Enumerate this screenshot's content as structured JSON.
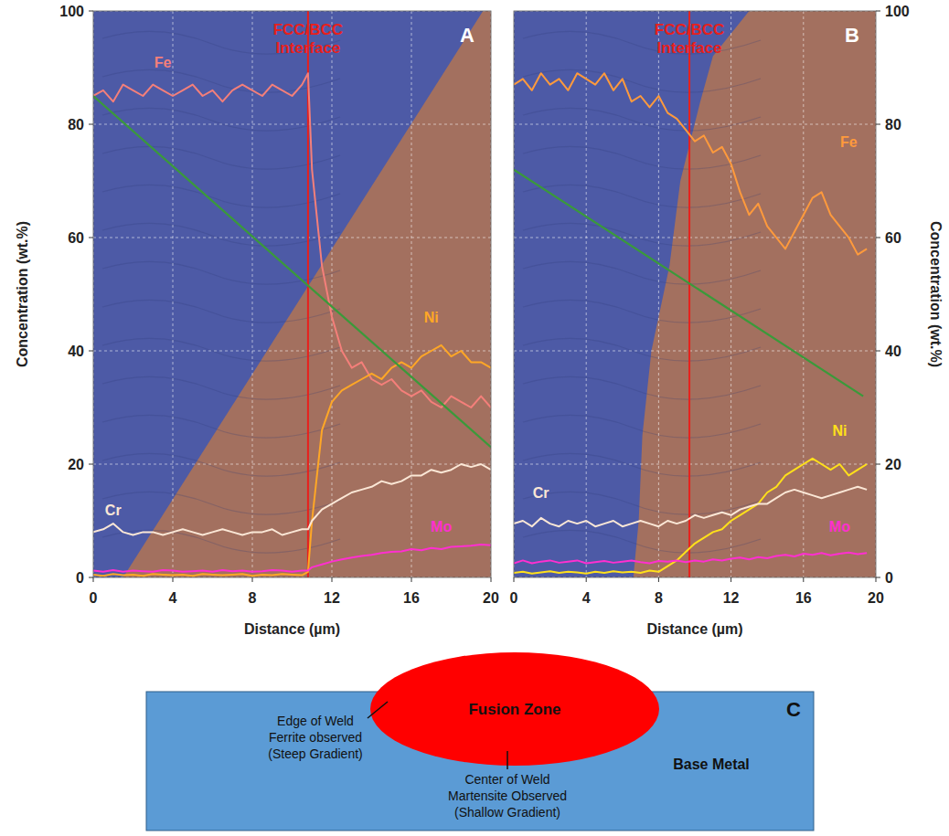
{
  "chart_data": [
    {
      "type": "line",
      "panel": "A",
      "x_label": "Distance (µm)",
      "y_label": "Concentration (wt.%)",
      "xlim": [
        0,
        20
      ],
      "ylim": [
        0,
        100
      ],
      "xticks": [
        0,
        4,
        8,
        12,
        16,
        20
      ],
      "yticks": [
        0,
        20,
        40,
        60,
        80,
        100
      ],
      "grid": true,
      "annotations": [
        {
          "text": "FCC/BCC Interface",
          "x": 10.8,
          "color": "#e8201c"
        }
      ],
      "x": [
        0,
        0.5,
        1,
        1.5,
        2,
        2.5,
        3,
        3.5,
        4,
        4.5,
        5,
        5.5,
        6,
        6.5,
        7,
        7.5,
        8,
        8.5,
        9,
        9.5,
        10,
        10.5,
        10.8,
        11,
        11.5,
        12,
        12.5,
        13,
        13.5,
        14,
        14.5,
        15,
        15.5,
        16,
        16.5,
        17,
        17.5,
        18,
        18.5,
        19,
        19.5,
        20
      ],
      "series": [
        {
          "name": "Fe",
          "color": "#f47f7a",
          "values": [
            85,
            86,
            84,
            87,
            86,
            85,
            87,
            86,
            85,
            86,
            87,
            85,
            86,
            84,
            86,
            87,
            86,
            85,
            87,
            86,
            85,
            87,
            89,
            72,
            55,
            46,
            40,
            37,
            38,
            35,
            34,
            35,
            33,
            32,
            33,
            31,
            30,
            32,
            31,
            30,
            32,
            30
          ]
        },
        {
          "name": "Ni",
          "color": "#ffa726",
          "values": [
            0.5,
            0.3,
            0.6,
            0.4,
            0.5,
            0.3,
            0.6,
            0.5,
            0.4,
            0.5,
            0.3,
            0.6,
            0.5,
            0.4,
            0.5,
            0.6,
            0.3,
            0.5,
            0.4,
            0.6,
            0.5,
            0.4,
            1,
            10,
            26,
            31,
            33,
            34,
            35,
            36,
            35,
            37,
            38,
            37,
            39,
            40,
            41,
            39,
            40,
            38,
            38,
            37
          ]
        },
        {
          "name": "Cr",
          "color": "#fbe7d6",
          "values": [
            8,
            8.5,
            9.5,
            8,
            7.5,
            8,
            8,
            7.5,
            8,
            8.5,
            8,
            7.5,
            8,
            8.5,
            8,
            7.5,
            8,
            8,
            8.5,
            7.5,
            8,
            8.5,
            8.5,
            10,
            12,
            13,
            14,
            15,
            15.5,
            16,
            17,
            16.5,
            17,
            18,
            18,
            19,
            18.5,
            19,
            20,
            19.5,
            20,
            19
          ]
        },
        {
          "name": "Mo",
          "color": "#ff2fd0",
          "values": [
            1.2,
            1,
            1.3,
            1,
            1.2,
            1.1,
            1,
            1.3,
            1.2,
            1,
            1.1,
            1.2,
            1,
            1.3,
            1.1,
            1.2,
            1,
            1.1,
            1.3,
            1.2,
            1,
            1.2,
            1.2,
            1.8,
            2.3,
            2.8,
            3.2,
            3.5,
            3.8,
            4,
            4.3,
            4.5,
            4.6,
            5,
            4.8,
            5.2,
            5,
            5.4,
            5.5,
            5.6,
            5.8,
            5.7
          ]
        },
        {
          "color": "#3a9a3a",
          "x": [
            0,
            20
          ],
          "values": [
            85,
            23
          ]
        }
      ]
    },
    {
      "type": "line",
      "panel": "B",
      "x_label": "Distance (µm)",
      "y_label": "Concentration (wt.%)",
      "xlim": [
        0,
        20
      ],
      "ylim": [
        0,
        100
      ],
      "xticks": [
        0,
        4,
        8,
        12,
        16,
        20
      ],
      "yticks": [
        0,
        20,
        40,
        60,
        80,
        100
      ],
      "grid": true,
      "annotations": [
        {
          "text": "FCC/BCC Interface",
          "x": 9.7,
          "color": "#e8201c"
        }
      ],
      "x": [
        0,
        0.5,
        1,
        1.5,
        2,
        2.5,
        3,
        3.5,
        4,
        4.5,
        5,
        5.5,
        6,
        6.5,
        7,
        7.5,
        8,
        8.5,
        9,
        9.5,
        10,
        10.5,
        11,
        11.5,
        12,
        12.5,
        13,
        13.5,
        14,
        14.5,
        15,
        15.5,
        16,
        16.5,
        17,
        17.5,
        18,
        18.5,
        19,
        19.5,
        20
      ],
      "series": [
        {
          "name": "Fe",
          "color": "#ff9a3c",
          "values": [
            87,
            88,
            86,
            89,
            87,
            88,
            86,
            89,
            88,
            87,
            89,
            86,
            88,
            84,
            85,
            83,
            85,
            82,
            81,
            79,
            77,
            78,
            75,
            76,
            73,
            68,
            64,
            66,
            62,
            60,
            58,
            61,
            64,
            67,
            68,
            64,
            62,
            60,
            57,
            58,
            null
          ]
        },
        {
          "name": "Ni",
          "color": "#ffe01a",
          "values": [
            0.8,
            1,
            0.7,
            0.9,
            1.1,
            0.8,
            1,
            0.9,
            0.7,
            1,
            0.8,
            1.1,
            0.9,
            1,
            0.8,
            1.2,
            1,
            2,
            3,
            4.5,
            6,
            7,
            8,
            8.5,
            10,
            11,
            12,
            13,
            15,
            16,
            18,
            19,
            20,
            21,
            20,
            19,
            20,
            18,
            19,
            20,
            null
          ]
        },
        {
          "name": "Cr",
          "color": "#fbe7d6",
          "values": [
            9.5,
            10,
            9,
            10.5,
            9.5,
            9,
            10,
            9.5,
            10,
            9,
            9.5,
            10,
            9,
            9.5,
            10,
            9.5,
            9,
            10,
            9.5,
            10,
            11,
            10.5,
            11,
            11.5,
            11,
            12,
            12.5,
            13,
            13,
            14,
            15,
            15.5,
            15,
            14.5,
            14,
            14.5,
            15,
            15.5,
            16,
            15.5,
            null
          ]
        },
        {
          "name": "Mo",
          "color": "#ff2fd0",
          "values": [
            2.5,
            3,
            2.5,
            2.8,
            3,
            2.6,
            2.8,
            3,
            2.5,
            2.7,
            2.9,
            2.6,
            2.8,
            3,
            2.7,
            2.5,
            2.9,
            2.8,
            3,
            2.7,
            3,
            2.8,
            3.2,
            3,
            3.3,
            3.5,
            3.2,
            3.6,
            3.4,
            3.8,
            4,
            3.7,
            4.2,
            4,
            4.3,
            3.9,
            4.2,
            4.4,
            4.1,
            4.3,
            null
          ]
        },
        {
          "color": "#3a9a3a",
          "x": [
            0,
            19.3
          ],
          "values": [
            72,
            32
          ]
        }
      ]
    }
  ],
  "diagram": {
    "label": "C",
    "fusion_zone": "Fusion Zone",
    "base_metal": "Base Metal",
    "callouts": [
      {
        "lines": [
          "Edge of Weld",
          "Ferrite observed",
          "(Steep Gradient)"
        ]
      },
      {
        "lines": [
          "Center of Weld",
          "Martensite Observed",
          "(Shallow Gradient)"
        ]
      }
    ]
  }
}
